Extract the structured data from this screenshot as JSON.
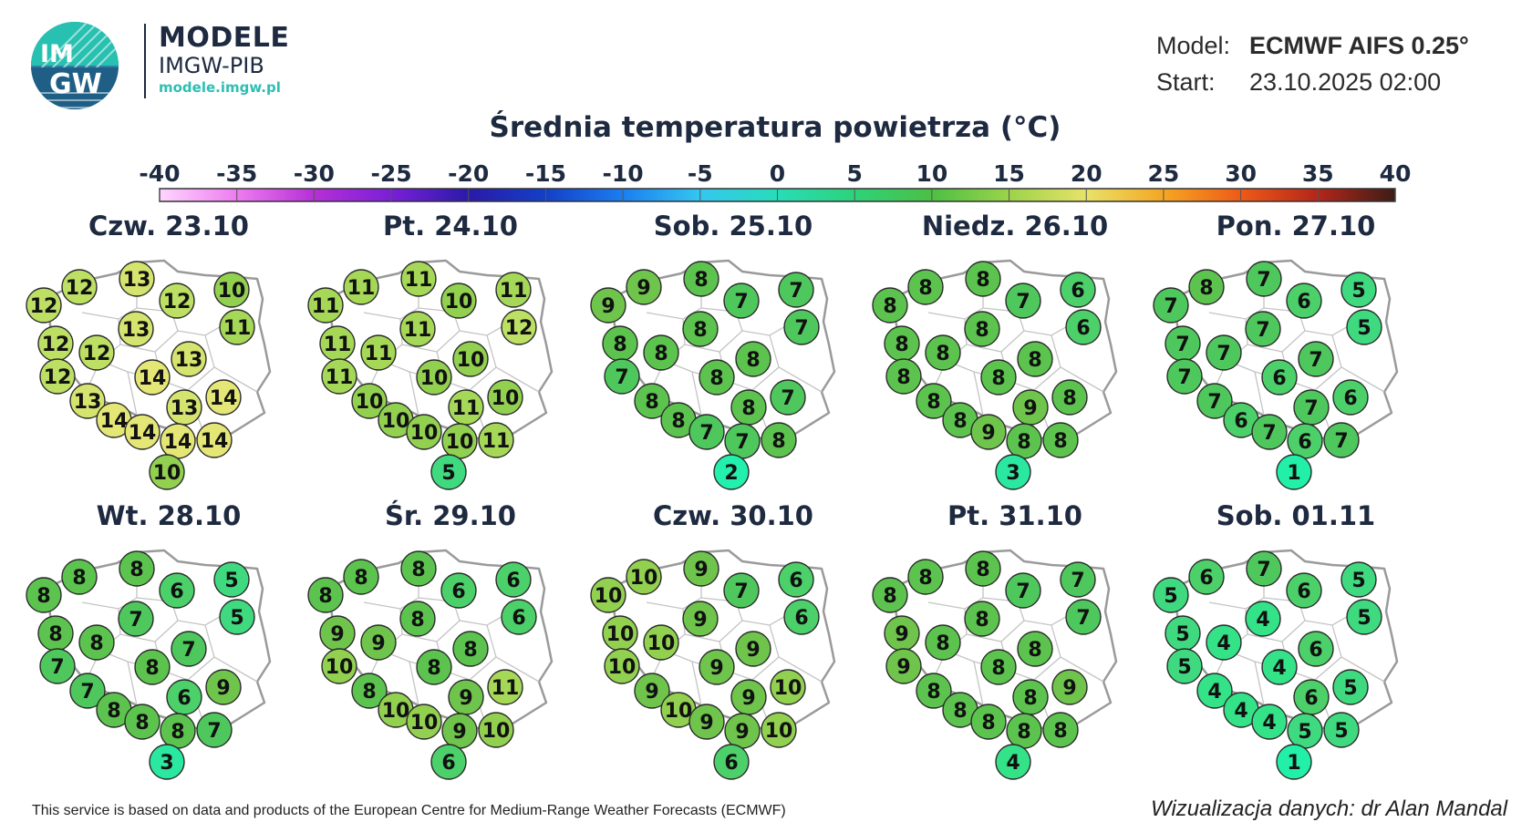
{
  "logo": {
    "text_top": "IM",
    "text_bottom": "GW"
  },
  "brand": {
    "title": "MODELE",
    "subtitle": "IMGW-PIB",
    "url": "modele.imgw.pl"
  },
  "model_info": {
    "model_label": "Model:",
    "model_value": "ECMWF AIFS 0.25°",
    "start_label": "Start:",
    "start_value": "23.10.2025 02:00"
  },
  "title": "Średnia temperatura powietrza (°C)",
  "color_scale": {
    "ticks": [
      "-40",
      "-35",
      "-30",
      "-25",
      "-20",
      "-15",
      "-10",
      "-5",
      "0",
      "5",
      "10",
      "15",
      "20",
      "25",
      "30",
      "35",
      "40"
    ],
    "stops": [
      "#ffd6ff",
      "#ee7cf0",
      "#b62fd6",
      "#7a1fd8",
      "#2a1aa8",
      "#1340c8",
      "#1b7ef0",
      "#35c7f0",
      "#28dcb8",
      "#2ed27a",
      "#4cbf44",
      "#9cd34a",
      "#e8e26a",
      "#f5a623",
      "#ee5a18",
      "#b3261a",
      "#3b1d16"
    ]
  },
  "station_colors": {
    "1": "#22f0a8",
    "2": "#22f0ac",
    "3": "#2ae8a0",
    "4": "#34e288",
    "5": "#3fda80",
    "6": "#4cd06a",
    "7": "#4ec85c",
    "8": "#5cc44e",
    "9": "#6fc44c",
    "10": "#92d050",
    "11": "#a6d858",
    "12": "#bcdf64",
    "13": "#d4e46e",
    "14": "#e4e676"
  },
  "days": [
    {
      "label": "Czw. 23.10",
      "values": [
        12,
        12,
        13,
        12,
        10,
        11,
        12,
        12,
        13,
        13,
        12,
        14,
        13,
        13,
        14,
        14,
        14,
        14,
        14,
        10
      ]
    },
    {
      "label": "Pt. 24.10",
      "values": [
        11,
        11,
        11,
        10,
        11,
        12,
        11,
        11,
        11,
        10,
        11,
        10,
        10,
        11,
        10,
        10,
        10,
        10,
        11,
        5
      ]
    },
    {
      "label": "Sob. 25.10",
      "values": [
        9,
        9,
        8,
        7,
        7,
        7,
        8,
        8,
        8,
        8,
        7,
        8,
        8,
        8,
        7,
        8,
        7,
        7,
        8,
        2
      ]
    },
    {
      "label": "Niedz. 26.10",
      "values": [
        8,
        8,
        8,
        7,
        6,
        6,
        8,
        8,
        8,
        8,
        8,
        8,
        8,
        9,
        8,
        8,
        9,
        8,
        8,
        3
      ]
    },
    {
      "label": "Pon. 27.10",
      "values": [
        7,
        8,
        7,
        6,
        5,
        5,
        7,
        7,
        7,
        7,
        7,
        6,
        7,
        7,
        6,
        6,
        7,
        6,
        7,
        1
      ]
    },
    {
      "label": "Wt. 28.10",
      "values": [
        8,
        8,
        8,
        6,
        5,
        5,
        8,
        8,
        7,
        7,
        7,
        8,
        7,
        6,
        9,
        8,
        8,
        8,
        7,
        3
      ]
    },
    {
      "label": "Śr. 29.10",
      "values": [
        8,
        8,
        8,
        6,
        6,
        6,
        9,
        9,
        8,
        8,
        10,
        8,
        8,
        9,
        11,
        10,
        10,
        9,
        10,
        6
      ]
    },
    {
      "label": "Czw. 30.10",
      "values": [
        10,
        10,
        9,
        7,
        6,
        6,
        10,
        10,
        9,
        9,
        10,
        9,
        9,
        9,
        10,
        10,
        9,
        9,
        10,
        6
      ]
    },
    {
      "label": "Pt. 31.10",
      "values": [
        8,
        8,
        8,
        7,
        7,
        7,
        9,
        8,
        8,
        8,
        9,
        8,
        8,
        8,
        9,
        8,
        8,
        8,
        8,
        4
      ]
    },
    {
      "label": "Sob. 01.11",
      "values": [
        5,
        6,
        7,
        6,
        5,
        5,
        5,
        4,
        4,
        6,
        5,
        4,
        4,
        6,
        5,
        4,
        4,
        5,
        5,
        1
      ]
    }
  ],
  "footer": {
    "left": "This service is based on data and products of the European Centre for Medium-Range Weather Forecasts (ECMWF)",
    "right": "Wizualizacja danych: dr Alan Mandal"
  }
}
